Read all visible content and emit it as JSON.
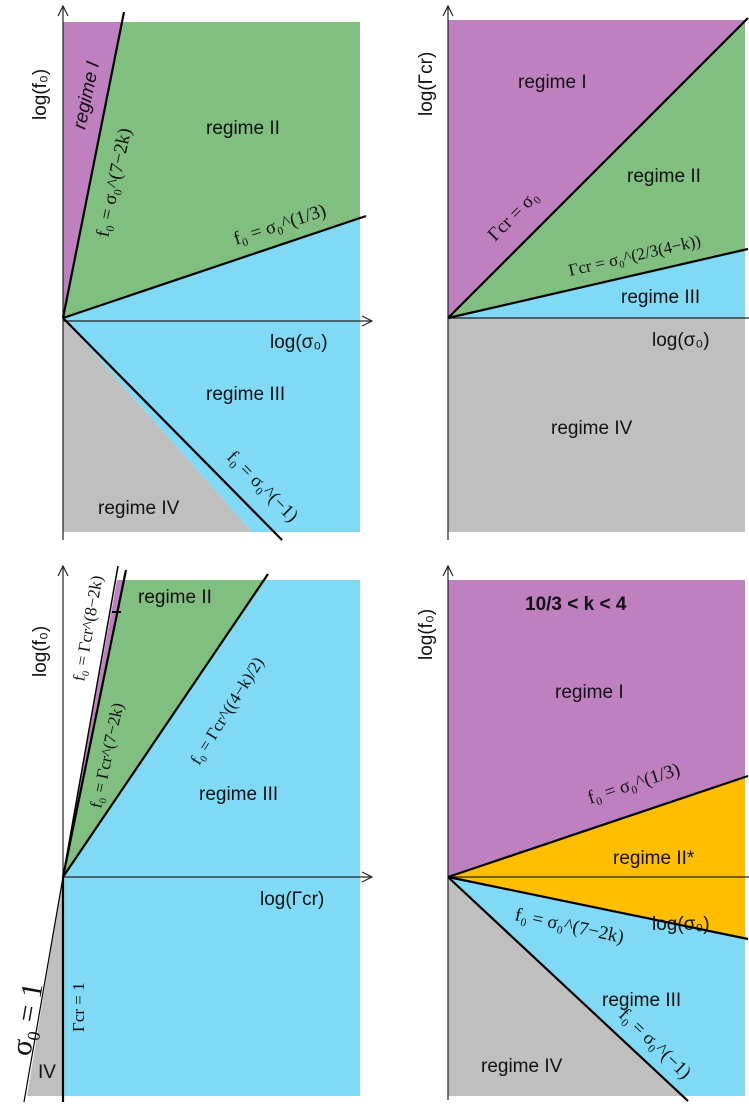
{
  "colors": {
    "regime_I": "#bf80bf",
    "regime_II": "#80bf80",
    "regime_III": "#80daf5",
    "regime_IV": "#bfbfbf",
    "regime_II_star": "#ffbf00"
  },
  "panel_a": {
    "y_axis": "log(f₀)",
    "x_axis": "log(σ₀)",
    "regime_I": "regime I",
    "regime_II": "regime II",
    "regime_III": "regime III",
    "regime_IV": "regime IV",
    "line_steep": "f₀ = σ₀^(7−2k)",
    "line_shallow": "f₀ = σ₀^(1/3)",
    "line_down": "f₀ = σ₀^(−1)"
  },
  "panel_b": {
    "y_axis": "log(Γcr)",
    "x_axis": "log(σ₀)",
    "regime_I": "regime I",
    "regime_II": "regime II",
    "regime_III": "regime III",
    "regime_IV": "regime IV",
    "line_diag": "Γcr = σ₀",
    "line_shallow": "Γcr = σ₀^(2/3(4−k))"
  },
  "panel_c": {
    "y_axis": "log(f₀)",
    "x_axis": "log(Γcr)",
    "regime_II": "regime II",
    "regime_III": "regime III",
    "regime_IV": "IV",
    "line_a": "f₀ = Γcr^(8−2k)",
    "line_b": "f₀ = Γcr^(7−2k)",
    "line_c": "f₀ = Γcr^((4−k)/2)",
    "line_vert": "Γcr = 1",
    "line_sigma": "σ₀ = 1"
  },
  "panel_d": {
    "y_axis": "log(f₀)",
    "x_axis": "log(σ₀)",
    "condition": "10/3 < k < 4",
    "regime_I": "regime I",
    "regime_II_star": "regime II*",
    "regime_III": "regime III",
    "regime_IV": "regime IV",
    "line_up": "f₀ = σ₀^(1/3)",
    "line_down": "f₀ = σ₀^(7−2k)",
    "line_down_steep": "f₀ = σ₀^(−1)"
  }
}
